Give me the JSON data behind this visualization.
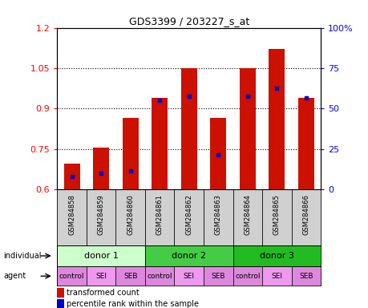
{
  "title": "GDS3399 / 203227_s_at",
  "samples": [
    "GSM284858",
    "GSM284859",
    "GSM284860",
    "GSM284861",
    "GSM284862",
    "GSM284863",
    "GSM284864",
    "GSM284865",
    "GSM284866"
  ],
  "transformed_count": [
    0.695,
    0.755,
    0.865,
    0.94,
    1.05,
    0.865,
    1.05,
    1.12,
    0.94
  ],
  "percentile_rank": [
    0.648,
    0.66,
    0.668,
    0.93,
    0.945,
    0.73,
    0.945,
    0.975,
    0.94
  ],
  "y_min": 0.6,
  "y_max": 1.2,
  "y_ticks": [
    0.6,
    0.75,
    0.9,
    1.05,
    1.2
  ],
  "right_y_ticks": [
    0,
    25,
    50,
    75,
    100
  ],
  "bar_color": "#cc1100",
  "percentile_color": "#0000cc",
  "individual_groups": [
    {
      "label": "donor 1",
      "start": 0,
      "end": 3,
      "color": "#ccffcc"
    },
    {
      "label": "donor 2",
      "start": 3,
      "end": 6,
      "color": "#44cc44"
    },
    {
      "label": "donor 3",
      "start": 6,
      "end": 9,
      "color": "#22bb22"
    }
  ],
  "agent_groups": [
    {
      "label": "control",
      "color": "#dd88dd"
    },
    {
      "label": "SEI",
      "color": "#ee99ee"
    },
    {
      "label": "SEB",
      "color": "#dd88dd"
    },
    {
      "label": "control",
      "color": "#dd88dd"
    },
    {
      "label": "SEI",
      "color": "#ee99ee"
    },
    {
      "label": "SEB",
      "color": "#dd88dd"
    },
    {
      "label": "control",
      "color": "#dd88dd"
    },
    {
      "label": "SEI",
      "color": "#ee99ee"
    },
    {
      "label": "SEB",
      "color": "#dd88dd"
    }
  ],
  "sample_bg_color": "#d0d0d0",
  "legend_transformed": "transformed count",
  "legend_percentile": "percentile rank within the sample"
}
